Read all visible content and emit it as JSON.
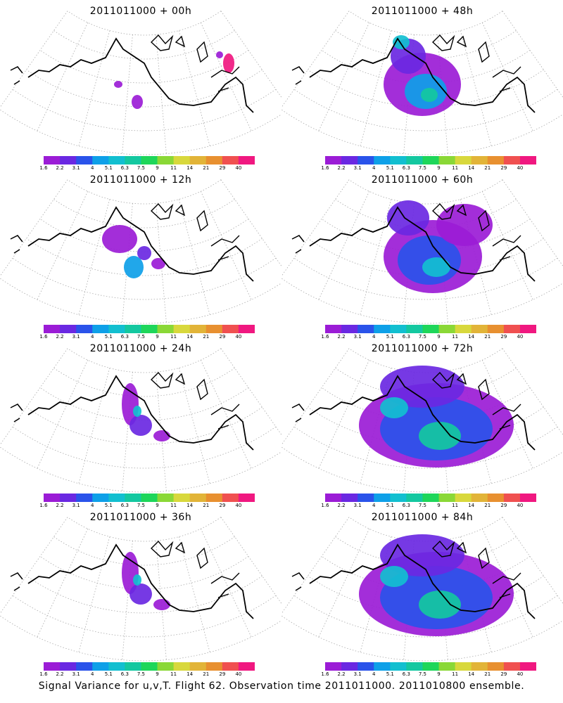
{
  "panels": [
    {
      "title": "2011011000 + 00h",
      "level": 0
    },
    {
      "title": "2011011000 + 48h",
      "level": 3
    },
    {
      "title": "2011011000 + 12h",
      "level": 1
    },
    {
      "title": "2011011000 + 60h",
      "level": 4
    },
    {
      "title": "2011011000 + 24h",
      "level": 2
    },
    {
      "title": "2011011000 + 72h",
      "level": 5
    },
    {
      "title": "2011011000 + 36h",
      "level": 2
    },
    {
      "title": "2011011000 + 84h",
      "level": 5
    }
  ],
  "colorbar": {
    "labels": [
      "1.6",
      "2.2",
      "3.1",
      "4",
      "5.1",
      "6.3",
      "7.5",
      "9",
      "11",
      "14",
      "21",
      "29",
      "40"
    ],
    "colors": [
      "#9b1cd6",
      "#6a28e2",
      "#2a53ea",
      "#0ea0e8",
      "#12bfd0",
      "#14c8a0",
      "#1ed65a",
      "#8ad836",
      "#d8d83c",
      "#e2b438",
      "#e89030",
      "#f05050",
      "#f01880"
    ]
  },
  "footer": "Signal Variance for u,v,T. Flight 62. Observation time 2011011000. 2011010800 ensemble."
}
